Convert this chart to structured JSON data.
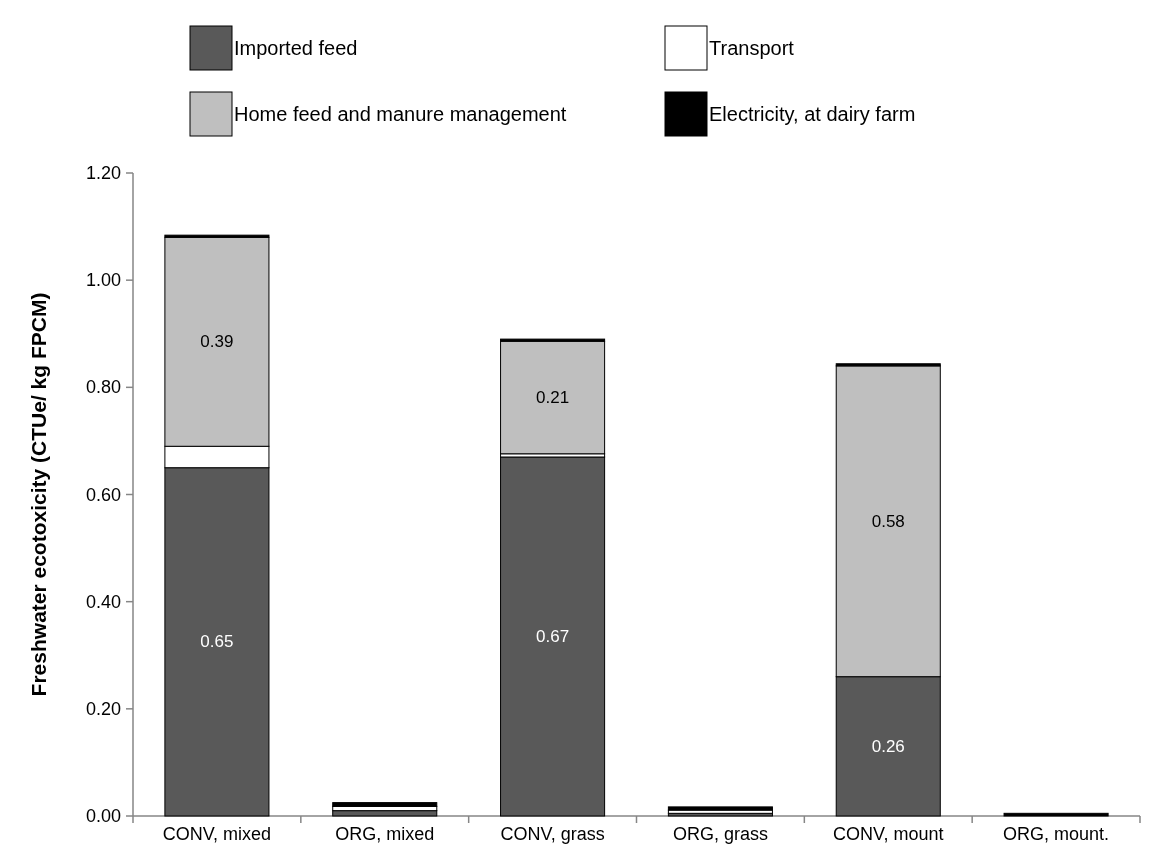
{
  "chart_data": {
    "type": "bar",
    "stacked": true,
    "ylabel": "Freshwater ecotoxicity (CTUe/ kg FPCM)",
    "categories": [
      "CONV, mixed",
      "ORG, mixed",
      "CONV, grass",
      "ORG, grass",
      "CONV, mount",
      "ORG, mount."
    ],
    "series": [
      {
        "name": "Imported feed",
        "color": "#595959",
        "values": [
          0.65,
          0.01,
          0.67,
          0.005,
          0.26,
          null
        ],
        "value_labels": [
          "0.65",
          null,
          "0.67",
          null,
          "0.26",
          null
        ]
      },
      {
        "name": "Transport",
        "color": "#ffffff",
        "values": [
          0.04,
          0.008,
          0.006,
          0.006,
          null,
          null
        ]
      },
      {
        "name": "Home feed and manure management",
        "color": "#bfbfbf",
        "values": [
          0.39,
          null,
          0.21,
          null,
          0.58,
          null
        ],
        "value_labels": [
          "0.39",
          null,
          "0.21",
          null,
          "0.58",
          null
        ]
      },
      {
        "name": "Electricity, at dairy farm",
        "color": "#000000",
        "values": [
          0.004,
          0.007,
          0.004,
          0.006,
          0.004,
          0.005
        ]
      }
    ],
    "ylim": [
      0,
      1.2
    ],
    "yticks": [
      {
        "value": 0,
        "label": "0.00"
      },
      {
        "value": 0.2,
        "label": "0.20"
      },
      {
        "value": 0.4,
        "label": "0.40"
      },
      {
        "value": 0.6,
        "label": "0.60"
      },
      {
        "value": 0.8,
        "label": "0.80"
      },
      {
        "value": 1,
        "label": "1.00"
      },
      {
        "value": 1.2,
        "label": "1.20"
      }
    ],
    "legend": "top",
    "grid": false
  }
}
